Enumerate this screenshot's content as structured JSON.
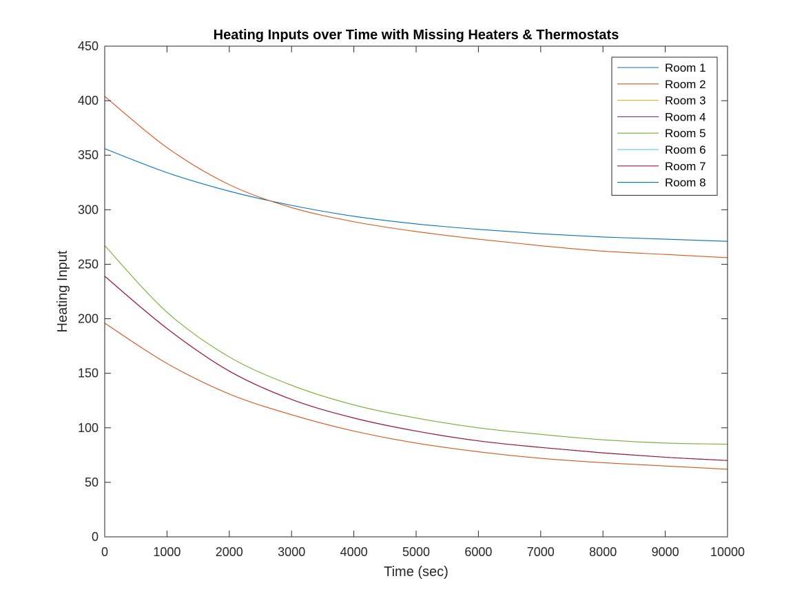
{
  "chart_data": {
    "type": "line",
    "title": "Heating Inputs over Time with Missing Heaters & Thermostats",
    "xlabel": "Time (sec)",
    "ylabel": "Heating Input",
    "xlim": [
      0,
      10000
    ],
    "ylim": [
      0,
      450
    ],
    "xticks": [
      0,
      1000,
      2000,
      3000,
      4000,
      5000,
      6000,
      7000,
      8000,
      9000,
      10000
    ],
    "yticks": [
      0,
      50,
      100,
      150,
      200,
      250,
      300,
      350,
      400,
      450
    ],
    "grid": false,
    "legend_position": "top-right",
    "x": [
      0,
      1000,
      2000,
      3000,
      4000,
      5000,
      6000,
      7000,
      8000,
      9000,
      10000
    ],
    "series": [
      {
        "name": "Room 1",
        "color": "#0072BD",
        "values": [
          356,
          334,
          317,
          304,
          294,
          287,
          282,
          278,
          275,
          273,
          271
        ]
      },
      {
        "name": "Room 2",
        "color": "#D95319",
        "values": [
          404,
          357,
          323,
          302,
          289,
          280,
          273,
          267,
          262,
          259,
          256
        ]
      },
      {
        "name": "Room 3",
        "color": "#EDB120",
        "values": [
          0,
          0,
          0,
          0,
          0,
          0,
          0,
          0,
          0,
          0,
          0
        ]
      },
      {
        "name": "Room 4",
        "color": "#7E2F8E",
        "values": [
          239,
          191,
          152,
          126,
          109,
          97,
          88,
          82,
          77,
          73,
          70
        ]
      },
      {
        "name": "Room 5",
        "color": "#77AC30",
        "values": [
          267,
          206,
          165,
          139,
          121,
          109,
          100,
          94,
          89,
          86,
          85
        ]
      },
      {
        "name": "Room 6",
        "color": "#4DBEEE",
        "values": [
          0,
          0,
          0,
          0,
          0,
          0,
          0,
          0,
          0,
          0,
          0
        ]
      },
      {
        "name": "Room 7",
        "color": "#A2142F",
        "values": [
          239,
          191,
          152,
          126,
          109,
          97,
          88,
          82,
          77,
          73,
          70
        ]
      },
      {
        "name": "Room 8",
        "color": "#0072BD",
        "values": [
          0,
          0,
          0,
          0,
          0,
          0,
          0,
          0,
          0,
          0,
          0
        ]
      },
      {
        "name": "",
        "color": "#D95319",
        "values": [
          196,
          159,
          131,
          112,
          97,
          86,
          78,
          72,
          68,
          65,
          62
        ]
      }
    ]
  }
}
